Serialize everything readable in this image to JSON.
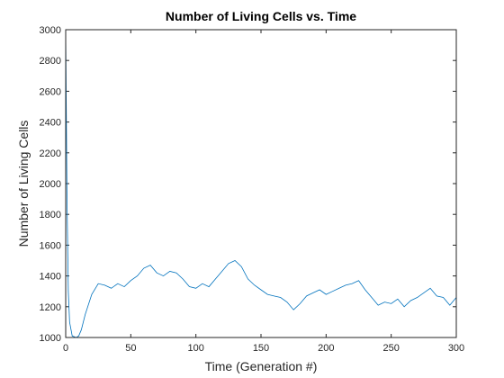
{
  "chart_data": {
    "type": "line",
    "title": "Number of Living Cells vs. Time",
    "x_label": "Time (Generation #)",
    "y_label": "Number of Living Cells",
    "x": [
      0,
      1,
      2,
      3,
      5,
      8,
      10,
      12,
      15,
      20,
      25,
      30,
      35,
      40,
      45,
      50,
      55,
      60,
      65,
      70,
      75,
      80,
      85,
      90,
      95,
      100,
      105,
      110,
      115,
      120,
      125,
      130,
      135,
      140,
      145,
      150,
      155,
      160,
      165,
      170,
      175,
      180,
      185,
      190,
      195,
      200,
      205,
      210,
      215,
      220,
      225,
      230,
      235,
      240,
      245,
      250,
      255,
      260,
      265,
      270,
      275,
      280,
      285,
      290,
      295,
      300
    ],
    "series": [
      {
        "name": "Living cells",
        "color": "#0072BD",
        "values": [
          3000,
          1900,
          1300,
          1100,
          1010,
          1000,
          1010,
          1050,
          1150,
          1280,
          1350,
          1340,
          1320,
          1350,
          1330,
          1370,
          1400,
          1450,
          1470,
          1420,
          1400,
          1430,
          1420,
          1380,
          1330,
          1320,
          1350,
          1330,
          1380,
          1430,
          1480,
          1500,
          1460,
          1380,
          1340,
          1310,
          1280,
          1270,
          1260,
          1230,
          1180,
          1220,
          1270,
          1290,
          1310,
          1280,
          1300,
          1320,
          1340,
          1350,
          1370,
          1310,
          1260,
          1210,
          1230,
          1220,
          1250,
          1200,
          1240,
          1260,
          1290,
          1320,
          1270,
          1260,
          1210,
          1260
        ]
      }
    ],
    "xlim": [
      0,
      300
    ],
    "ylim": [
      1000,
      3000
    ],
    "xticks": [
      0,
      50,
      100,
      150,
      200,
      250,
      300
    ],
    "yticks": [
      1000,
      1200,
      1400,
      1600,
      1800,
      2000,
      2200,
      2400,
      2600,
      2800,
      3000
    ],
    "grid": false
  }
}
